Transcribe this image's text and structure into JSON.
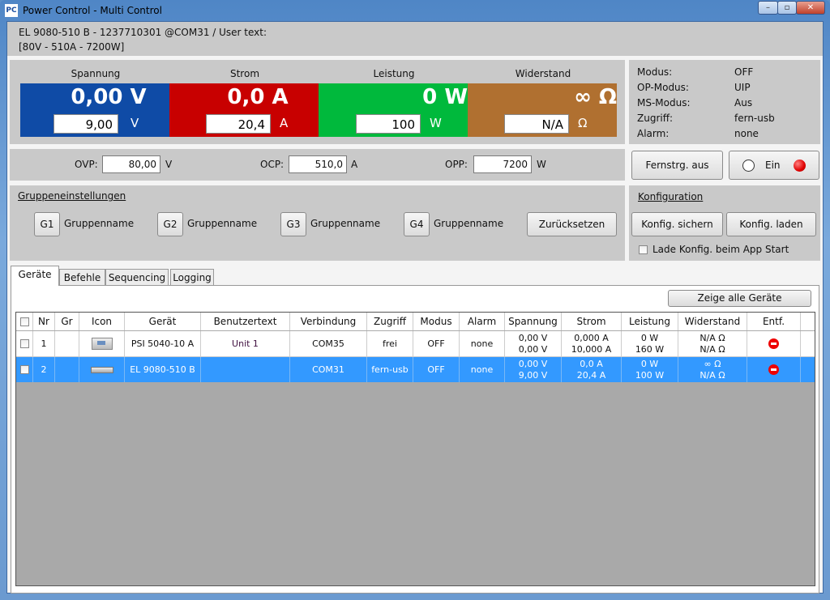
{
  "window": {
    "icon_text": "PC",
    "title": "Power Control - Multi Control"
  },
  "header": {
    "line1": "EL 9080-510 B - 1237710301 @COM31 / User text:",
    "line2": "[80V - 510A - 7200W]"
  },
  "meters": [
    {
      "label": "Spannung",
      "value": "0,00 V",
      "set": "9,00",
      "unit": "V",
      "color": "#0f4ba6"
    },
    {
      "label": "Strom",
      "value": "0,0 A",
      "set": "20,4",
      "unit": "A",
      "color": "#c80000"
    },
    {
      "label": "Leistung",
      "value": "0 W",
      "set": "100",
      "unit": "W",
      "color": "#00b93c"
    },
    {
      "label": "Widerstand",
      "value": "∞ Ω",
      "set": "N/A",
      "unit": "Ω",
      "color": "#b07030"
    }
  ],
  "status": [
    {
      "k": "Modus:",
      "v": "OFF"
    },
    {
      "k": "OP-Modus:",
      "v": "UIP"
    },
    {
      "k": "MS-Modus:",
      "v": "Aus"
    },
    {
      "k": "Zugriff:",
      "v": "fern-usb"
    },
    {
      "k": "Alarm:",
      "v": "none"
    }
  ],
  "protection": {
    "ovp_label": "OVP:",
    "ovp": "80,00",
    "ovp_unit": "V",
    "ocp_label": "OCP:",
    "ocp": "510,0",
    "ocp_unit": "A",
    "opp_label": "OPP:",
    "opp": "7200",
    "opp_unit": "W"
  },
  "remote_button": "Fernstrg. aus",
  "on_button": "Ein",
  "groups": {
    "title": "Gruppeneinstellungen",
    "items": [
      {
        "id": "G1",
        "name": "Gruppenname"
      },
      {
        "id": "G2",
        "name": "Gruppenname"
      },
      {
        "id": "G3",
        "name": "Gruppenname"
      },
      {
        "id": "G4",
        "name": "Gruppenname"
      }
    ],
    "reset": "Zurücksetzen"
  },
  "config": {
    "title": "Konfiguration",
    "save": "Konfig. sichern",
    "load": "Konfig. laden",
    "autoload": "Lade Konfig. beim App Start"
  },
  "tabs": [
    "Geräte",
    "Befehle",
    "Sequencing",
    "Logging"
  ],
  "show_all": "Zeige alle Geräte",
  "table": {
    "headers": [
      "",
      "Nr",
      "Gr",
      "Icon",
      "Gerät",
      "Benutzertext",
      "Verbindung",
      "Zugriff",
      "Modus",
      "Alarm",
      "Spannung",
      "Strom",
      "Leistung",
      "Widerstand",
      "Entf."
    ],
    "rows": [
      {
        "nr": "1",
        "gr": "",
        "device": "PSI 5040-10 A",
        "user": "Unit 1",
        "conn": "COM35",
        "access": "frei",
        "mode": "OFF",
        "alarm": "none",
        "u1": "0,00 V",
        "u2": "0,00 V",
        "i1": "0,000 A",
        "i2": "10,000 A",
        "p1": "0 W",
        "p2": "160 W",
        "r1": "N/A Ω",
        "r2": "N/A Ω"
      },
      {
        "nr": "2",
        "gr": "",
        "device": "EL 9080-510 B",
        "user": "",
        "conn": "COM31",
        "access": "fern-usb",
        "mode": "OFF",
        "alarm": "none",
        "u1": "0,00 V",
        "u2": "9,00 V",
        "i1": "0,0 A",
        "i2": "20,4 A",
        "p1": "0 W",
        "p2": "100 W",
        "r1": "∞ Ω",
        "r2": "N/A Ω"
      }
    ]
  }
}
